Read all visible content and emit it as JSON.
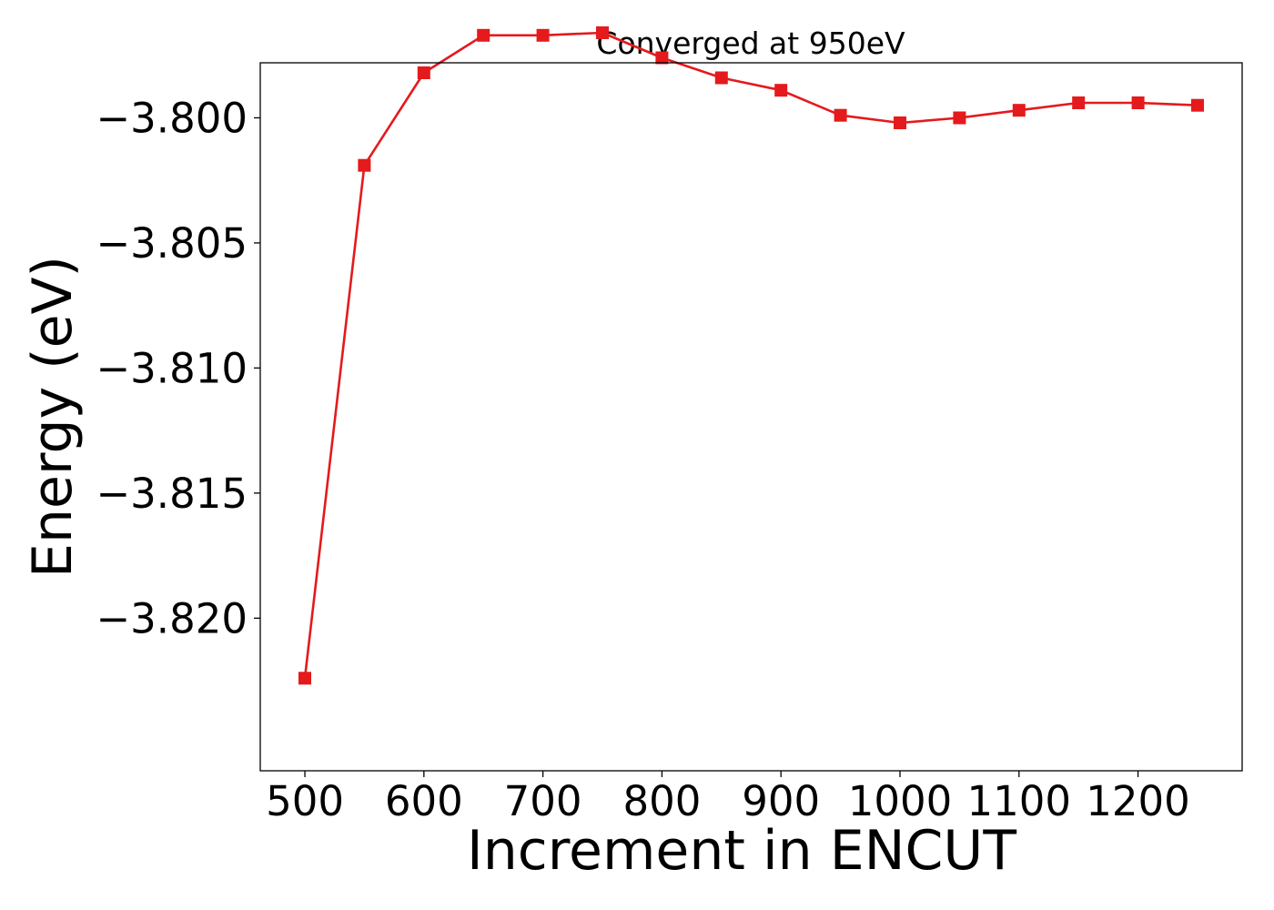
{
  "chart_data": {
    "type": "line",
    "title": "Converged at 950eV",
    "xlabel": "Increment in ENCUT",
    "ylabel": "Energy (eV)",
    "x": [
      500,
      550,
      600,
      650,
      700,
      750,
      800,
      850,
      900,
      950,
      1000,
      1050,
      1100,
      1150,
      1200,
      1250
    ],
    "series": [
      {
        "values": [
          -3.8224,
          -3.8019,
          -3.7982,
          -3.7967,
          -3.7967,
          -3.7966,
          -3.7976,
          -3.7984,
          -3.7989,
          -3.7999,
          -3.8002,
          -3.8,
          -3.7997,
          -3.7994,
          -3.7994,
          -3.7995
        ],
        "color": "#e41a1c",
        "marker": "square"
      }
    ],
    "xlim": [
      462.5,
      1287.5
    ],
    "ylim": [
      -3.8261,
      -3.7978
    ],
    "xticks": [
      500,
      600,
      700,
      800,
      900,
      1000,
      1100,
      1200
    ],
    "xtick_labels": [
      "500",
      "600",
      "700",
      "800",
      "900",
      "1000",
      "1100",
      "1200"
    ],
    "yticks": [
      -3.82,
      -3.815,
      -3.81,
      -3.805,
      -3.8
    ],
    "ytick_labels": [
      "−3.820",
      "−3.815",
      "−3.810",
      "−3.805",
      "−3.800"
    ],
    "grid": false,
    "legend": false
  }
}
